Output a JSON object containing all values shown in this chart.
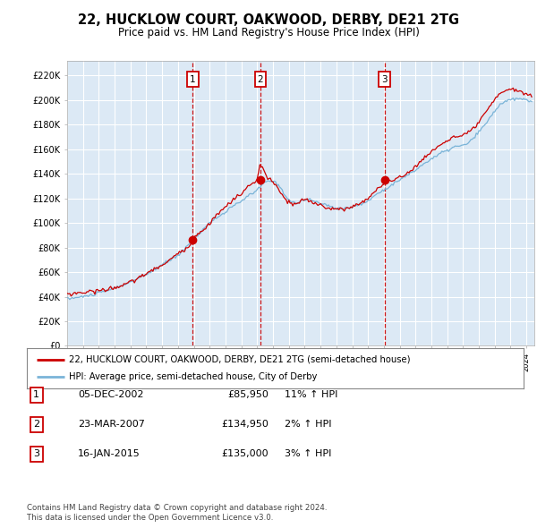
{
  "title": "22, HUCKLOW COURT, OAKWOOD, DERBY, DE21 2TG",
  "subtitle": "Price paid vs. HM Land Registry's House Price Index (HPI)",
  "bg_color": "#dce9f5",
  "ytick_labels": [
    "£0",
    "£20K",
    "£40K",
    "£60K",
    "£80K",
    "£100K",
    "£120K",
    "£140K",
    "£160K",
    "£180K",
    "£200K",
    "£220K"
  ],
  "yticks": [
    0,
    20000,
    40000,
    60000,
    80000,
    100000,
    120000,
    140000,
    160000,
    180000,
    200000,
    220000
  ],
  "xmin": 1995.0,
  "xmax": 2024.5,
  "ymin": 0,
  "ymax": 232000,
  "purchases": [
    {
      "date": 2002.92,
      "price": 85950,
      "label": "1"
    },
    {
      "date": 2007.21,
      "price": 134950,
      "label": "2"
    },
    {
      "date": 2015.04,
      "price": 135000,
      "label": "3"
    }
  ],
  "purchase_info": [
    {
      "num": "1",
      "date": "05-DEC-2002",
      "price": "£85,950",
      "hpi": "11% ↑ HPI"
    },
    {
      "num": "2",
      "date": "23-MAR-2007",
      "price": "£134,950",
      "hpi": "2% ↑ HPI"
    },
    {
      "num": "3",
      "date": "16-JAN-2015",
      "price": "£135,000",
      "hpi": "3% ↑ HPI"
    }
  ],
  "legend_line1": "22, HUCKLOW COURT, OAKWOOD, DERBY, DE21 2TG (semi-detached house)",
  "legend_line2": "HPI: Average price, semi-detached house, City of Derby",
  "footer1": "Contains HM Land Registry data © Crown copyright and database right 2024.",
  "footer2": "This data is licensed under the Open Government Licence v3.0.",
  "line_color_price": "#cc0000",
  "line_color_hpi": "#7ab4d8",
  "dot_color": "#cc0000"
}
